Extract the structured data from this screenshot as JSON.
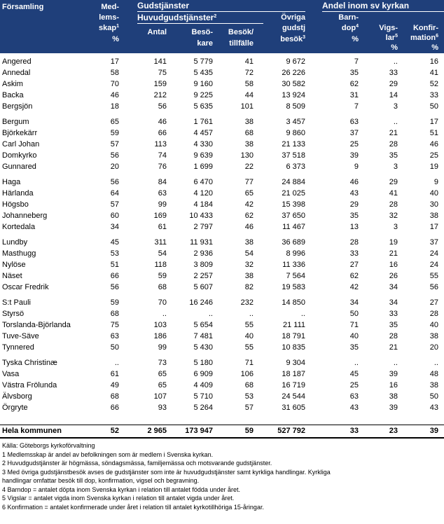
{
  "header": {
    "forsamling": "Församling",
    "medlemsskap_1": "Med-",
    "medlemsskap_2": "lems-",
    "medlemsskap_3": "skap",
    "medlemsskap_sup": "1",
    "medlemsskap_unit": "%",
    "gudstjanster": "Gudstjänster",
    "huvudgudstjanster": "Huvudgudstjänster",
    "huvud_sup": "2",
    "antal": "Antal",
    "besokare_1": "Besö-",
    "besokare_2": "kare",
    "besok_1": "Besök/",
    "besok_2": "tillfälle",
    "ovriga_1": "Övriga",
    "ovriga_2": "gudstj",
    "ovriga_3": "besök",
    "ovriga_sup": "3",
    "andel": "Andel inom sv kyrkan",
    "barndop_1": "Barn-",
    "barndop_2": "dop",
    "barndop_sup": "4",
    "barndop_unit": "%",
    "vigslar_1": "Vigs-",
    "vigslar_2": "lar",
    "vigslar_sup": "5",
    "vigslar_unit": "%",
    "konf_1": "Konfir-",
    "konf_2": "mation",
    "konf_sup": "6",
    "konf_unit": "%"
  },
  "rows": [
    [
      "Angered",
      "17",
      "141",
      "5 779",
      "41",
      "9 672",
      "7",
      "..",
      "16"
    ],
    [
      "Annedal",
      "58",
      "75",
      "5 435",
      "72",
      "26 226",
      "35",
      "33",
      "41"
    ],
    [
      "Askim",
      "70",
      "159",
      "9 160",
      "58",
      "30 582",
      "62",
      "29",
      "52"
    ],
    [
      "Backa",
      "46",
      "212",
      "9 225",
      "44",
      "13 924",
      "31",
      "14",
      "33"
    ],
    [
      "Bergsjön",
      "18",
      "56",
      "5 635",
      "101",
      "8 509",
      "7",
      "3",
      "50"
    ],
    [
      "Bergum",
      "65",
      "46",
      "1 761",
      "38",
      "3 457",
      "63",
      "..",
      "17"
    ],
    [
      "Björkekärr",
      "59",
      "66",
      "4 457",
      "68",
      "9 860",
      "37",
      "21",
      "51"
    ],
    [
      "Carl Johan",
      "57",
      "113",
      "4 330",
      "38",
      "21 133",
      "25",
      "28",
      "46"
    ],
    [
      "Domkyrko",
      "56",
      "74",
      "9 639",
      "130",
      "37 518",
      "39",
      "35",
      "25"
    ],
    [
      "Gunnared",
      "20",
      "76",
      "1 699",
      "22",
      "6 373",
      "9",
      "3",
      "19"
    ],
    [
      "Haga",
      "56",
      "84",
      "6 470",
      "77",
      "24 884",
      "46",
      "29",
      "9"
    ],
    [
      "Härlanda",
      "64",
      "63",
      "4 120",
      "65",
      "21 025",
      "43",
      "41",
      "40"
    ],
    [
      "Högsbo",
      "57",
      "99",
      "4 184",
      "42",
      "15 398",
      "29",
      "28",
      "30"
    ],
    [
      "Johanneberg",
      "60",
      "169",
      "10 433",
      "62",
      "37 650",
      "35",
      "32",
      "38"
    ],
    [
      "Kortedala",
      "34",
      "61",
      "2 797",
      "46",
      "11 467",
      "13",
      "3",
      "17"
    ],
    [
      "Lundby",
      "45",
      "311",
      "11 931",
      "38",
      "36 689",
      "28",
      "19",
      "37"
    ],
    [
      "Masthugg",
      "53",
      "54",
      "2 936",
      "54",
      "8 996",
      "33",
      "21",
      "24"
    ],
    [
      "Nylöse",
      "51",
      "118",
      "3 809",
      "32",
      "11 336",
      "27",
      "16",
      "24"
    ],
    [
      "Näset",
      "66",
      "59",
      "2 257",
      "38",
      "7 564",
      "62",
      "26",
      "55"
    ],
    [
      "Oscar Fredrik",
      "56",
      "68",
      "5 607",
      "82",
      "19 583",
      "42",
      "34",
      "56"
    ],
    [
      "S:t Pauli",
      "59",
      "70",
      "16 246",
      "232",
      "14 850",
      "34",
      "34",
      "27"
    ],
    [
      "Styrsö",
      "68",
      "..",
      "..",
      "..",
      "..",
      "50",
      "33",
      "28"
    ],
    [
      "Torslanda-Björlanda",
      "75",
      "103",
      "5 654",
      "55",
      "21 111",
      "71",
      "35",
      "40"
    ],
    [
      "Tuve-Säve",
      "63",
      "186",
      "7 481",
      "40",
      "18 791",
      "40",
      "28",
      "38"
    ],
    [
      "Tynnered",
      "50",
      "99",
      "5 430",
      "55",
      "10 835",
      "35",
      "21",
      "20"
    ],
    [
      "Tyska Christinæ",
      "..",
      "73",
      "5 180",
      "71",
      "9 304",
      "..",
      "..",
      ".."
    ],
    [
      "Vasa",
      "61",
      "65",
      "6 909",
      "106",
      "18 187",
      "45",
      "39",
      "48"
    ],
    [
      "Västra Frölunda",
      "49",
      "65",
      "4 409",
      "68",
      "16 719",
      "25",
      "16",
      "38"
    ],
    [
      "Älvsborg",
      "68",
      "107",
      "5 710",
      "53",
      "24 544",
      "63",
      "38",
      "50"
    ],
    [
      "Örgryte",
      "66",
      "93",
      "5 264",
      "57",
      "31 605",
      "43",
      "39",
      "43"
    ]
  ],
  "total": [
    "Hela kommunen",
    "52",
    "2 965",
    "173 947",
    "59",
    "527 792",
    "33",
    "23",
    "39"
  ],
  "notes": [
    "Källa:  Göteborgs kyrkoförvaltning",
    "1  Medlemsskap är andel av befolkningen som är medlem i Svenska kyrkan.",
    "2  Huvudgudstjänster är högmässa, söndagsmässa, familjemässa och motsvarande gudstjänster.",
    "3  Med övriga gudstjänstbesök avses de gudstjänster som inte är huvudgudstjänster samt kyrkliga handlingar. Kyrkliga",
    "    handlingar omfattar besök till dop, konfirmation, vigsel och begravning.",
    "4  Barndop = antalet döpta inom Svenska kyrkan i relation till antalet födda under året.",
    "5  Vigslar = antalet vigda inom Svenska kyrkan i relation till antalet vigda under året.",
    "6  Konfirmation  = antalet konfirmerade under året i relation till antalet kyrkotillhöriga 15-åringar."
  ]
}
